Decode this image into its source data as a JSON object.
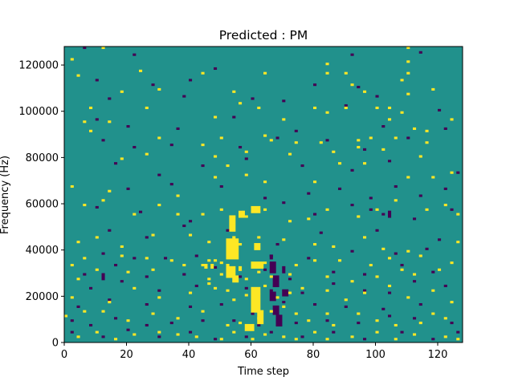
{
  "chart_data": {
    "type": "heatmap",
    "title": "Predicted : PM",
    "xlabel": "Time step",
    "ylabel": "Frequency (Hz)",
    "xlim": [
      0,
      128
    ],
    "ylim": [
      0,
      128000
    ],
    "x_ticks": [
      0,
      20,
      40,
      60,
      80,
      100,
      120
    ],
    "y_ticks": [
      0,
      20000,
      40000,
      60000,
      80000,
      100000,
      120000
    ],
    "grid": false,
    "legend": "none",
    "colormap": "viridis",
    "value_levels": [
      -1,
      0,
      1
    ],
    "n_time_steps": 128,
    "n_freq_bins": 128,
    "background_value": 0,
    "colors": {
      "low": "#440154",
      "mid": "#21918c",
      "high": "#fde725"
    },
    "high_cells": [
      [
        2,
        122
      ],
      [
        12,
        127
      ],
      [
        84,
        120
      ],
      [
        84,
        116
      ],
      [
        110,
        127
      ],
      [
        110,
        121
      ],
      [
        4,
        115
      ],
      [
        24,
        117
      ],
      [
        44,
        116
      ],
      [
        64,
        116
      ],
      [
        90,
        116
      ],
      [
        108,
        113
      ],
      [
        110,
        116
      ],
      [
        18,
        108
      ],
      [
        30,
        109
      ],
      [
        54,
        108
      ],
      [
        92,
        111
      ],
      [
        96,
        108
      ],
      [
        110,
        107
      ],
      [
        118,
        109
      ],
      [
        8,
        101
      ],
      [
        26,
        101
      ],
      [
        56,
        103
      ],
      [
        62,
        101
      ],
      [
        80,
        101
      ],
      [
        84,
        99
      ],
      [
        90,
        101
      ],
      [
        100,
        101
      ],
      [
        104,
        101
      ],
      [
        108,
        99
      ],
      [
        6,
        95
      ],
      [
        14,
        95
      ],
      [
        48,
        97
      ],
      [
        70,
        96
      ],
      [
        104,
        96
      ],
      [
        112,
        92
      ],
      [
        116,
        91
      ],
      [
        124,
        96
      ],
      [
        8,
        91
      ],
      [
        30,
        88
      ],
      [
        44,
        85
      ],
      [
        50,
        88
      ],
      [
        64,
        89
      ],
      [
        66,
        87
      ],
      [
        74,
        86
      ],
      [
        82,
        86
      ],
      [
        94,
        87
      ],
      [
        98,
        88
      ],
      [
        106,
        88
      ],
      [
        116,
        86
      ],
      [
        18,
        79
      ],
      [
        26,
        81
      ],
      [
        48,
        80
      ],
      [
        58,
        82
      ],
      [
        72,
        81
      ],
      [
        86,
        82
      ],
      [
        94,
        84
      ],
      [
        102,
        83
      ],
      [
        114,
        80
      ],
      [
        2,
        67
      ],
      [
        14,
        65
      ],
      [
        36,
        63
      ],
      [
        48,
        71
      ],
      [
        52,
        76
      ],
      [
        58,
        72
      ],
      [
        64,
        69
      ],
      [
        80,
        69
      ],
      [
        88,
        77
      ],
      [
        96,
        77
      ],
      [
        110,
        71
      ],
      [
        118,
        71
      ],
      [
        124,
        73
      ],
      [
        6,
        59
      ],
      [
        12,
        61
      ],
      [
        22,
        55
      ],
      [
        30,
        59
      ],
      [
        36,
        55
      ],
      [
        44,
        55
      ],
      [
        50,
        57
      ],
      [
        58,
        54
      ],
      [
        64,
        57
      ],
      [
        72,
        52
      ],
      [
        78,
        53
      ],
      [
        84,
        57
      ],
      [
        94,
        54
      ],
      [
        100,
        57
      ],
      [
        106,
        61
      ],
      [
        116,
        57
      ],
      [
        122,
        59
      ],
      [
        126,
        55
      ],
      [
        4,
        43
      ],
      [
        10,
        45
      ],
      [
        18,
        41
      ],
      [
        28,
        46
      ],
      [
        40,
        46
      ],
      [
        46,
        43
      ],
      [
        54,
        45
      ],
      [
        56,
        42
      ],
      [
        62,
        45
      ],
      [
        70,
        44
      ],
      [
        80,
        42
      ],
      [
        86,
        41
      ],
      [
        96,
        45
      ],
      [
        102,
        40
      ],
      [
        110,
        39
      ],
      [
        126,
        43
      ],
      [
        2,
        33
      ],
      [
        6,
        36
      ],
      [
        18,
        37
      ],
      [
        26,
        36
      ],
      [
        34,
        35
      ],
      [
        44,
        33
      ],
      [
        46,
        35
      ],
      [
        48,
        35
      ],
      [
        50,
        34
      ],
      [
        52,
        33
      ],
      [
        56,
        32
      ],
      [
        64,
        34
      ],
      [
        74,
        33
      ],
      [
        80,
        35
      ],
      [
        88,
        35
      ],
      [
        98,
        33
      ],
      [
        104,
        36
      ],
      [
        114,
        37
      ],
      [
        124,
        34
      ],
      [
        4,
        27
      ],
      [
        10,
        31
      ],
      [
        20,
        30
      ],
      [
        28,
        31
      ],
      [
        38,
        33
      ],
      [
        46,
        27
      ],
      [
        50,
        29
      ],
      [
        56,
        31
      ],
      [
        58,
        27
      ],
      [
        62,
        30
      ],
      [
        66,
        28
      ],
      [
        72,
        29
      ],
      [
        84,
        28
      ],
      [
        92,
        26
      ],
      [
        100,
        28
      ],
      [
        108,
        31
      ],
      [
        112,
        29
      ],
      [
        120,
        31
      ],
      [
        2,
        19
      ],
      [
        14,
        17
      ],
      [
        22,
        23
      ],
      [
        30,
        19
      ],
      [
        40,
        21
      ],
      [
        46,
        25
      ],
      [
        48,
        23
      ],
      [
        52,
        22
      ],
      [
        54,
        18
      ],
      [
        58,
        20
      ],
      [
        64,
        24
      ],
      [
        68,
        19
      ],
      [
        72,
        21
      ],
      [
        76,
        23
      ],
      [
        84,
        22
      ],
      [
        90,
        18
      ],
      [
        96,
        21
      ],
      [
        104,
        24
      ],
      [
        110,
        19
      ],
      [
        118,
        22
      ],
      [
        124,
        17
      ],
      [
        0,
        11
      ],
      [
        6,
        13
      ],
      [
        12,
        13
      ],
      [
        20,
        9
      ],
      [
        28,
        12
      ],
      [
        36,
        10
      ],
      [
        44,
        13
      ],
      [
        52,
        7
      ],
      [
        56,
        8
      ],
      [
        62,
        10
      ],
      [
        66,
        13
      ],
      [
        70,
        15
      ],
      [
        74,
        12
      ],
      [
        78,
        9
      ],
      [
        84,
        12
      ],
      [
        86,
        7
      ],
      [
        94,
        12
      ],
      [
        100,
        9
      ],
      [
        106,
        7
      ],
      [
        114,
        8
      ],
      [
        118,
        12
      ],
      [
        122,
        10
      ],
      [
        4,
        2
      ],
      [
        10,
        4
      ],
      [
        16,
        1
      ],
      [
        22,
        3
      ],
      [
        30,
        4
      ],
      [
        36,
        3
      ],
      [
        42,
        2
      ],
      [
        50,
        1
      ],
      [
        54,
        4
      ],
      [
        60,
        1
      ],
      [
        64,
        3
      ],
      [
        70,
        2
      ],
      [
        74,
        1
      ],
      [
        80,
        4
      ],
      [
        84,
        1
      ],
      [
        92,
        2
      ],
      [
        100,
        4
      ],
      [
        106,
        1
      ],
      [
        112,
        3
      ],
      [
        122,
        2
      ],
      [
        126,
        1
      ],
      [
        53,
        51,
        2,
        4
      ],
      [
        53,
        48,
        2,
        3
      ],
      [
        52,
        42,
        4,
        3
      ],
      [
        52,
        36,
        4,
        6
      ],
      [
        52,
        28,
        3,
        5
      ],
      [
        54,
        26,
        2,
        3
      ],
      [
        60,
        56,
        3,
        3
      ],
      [
        61,
        40,
        2,
        3
      ],
      [
        60,
        32,
        4,
        3
      ],
      [
        60,
        21,
        3,
        3
      ],
      [
        60,
        13,
        3,
        8
      ],
      [
        62,
        8,
        2,
        6
      ],
      [
        58,
        5,
        3,
        3
      ],
      [
        56,
        54,
        2,
        3
      ],
      [
        45,
        32,
        1,
        2
      ],
      [
        47,
        32,
        1,
        2
      ]
    ],
    "low_cells": [
      [
        6,
        127
      ],
      [
        22,
        124
      ],
      [
        48,
        118
      ],
      [
        92,
        124
      ],
      [
        114,
        125
      ],
      [
        10,
        113
      ],
      [
        28,
        111
      ],
      [
        40,
        113
      ],
      [
        80,
        111
      ],
      [
        94,
        110
      ],
      [
        14,
        105
      ],
      [
        38,
        106
      ],
      [
        60,
        105
      ],
      [
        70,
        104
      ],
      [
        90,
        102
      ],
      [
        100,
        106
      ],
      [
        120,
        100
      ],
      [
        10,
        96
      ],
      [
        20,
        93
      ],
      [
        36,
        92
      ],
      [
        54,
        97
      ],
      [
        74,
        91
      ],
      [
        102,
        93
      ],
      [
        122,
        92
      ],
      [
        12,
        87
      ],
      [
        22,
        84
      ],
      [
        34,
        85
      ],
      [
        56,
        84
      ],
      [
        68,
        88
      ],
      [
        84,
        87
      ],
      [
        96,
        83
      ],
      [
        110,
        88
      ],
      [
        16,
        77
      ],
      [
        30,
        72
      ],
      [
        44,
        76
      ],
      [
        58,
        79
      ],
      [
        76,
        76
      ],
      [
        92,
        74
      ],
      [
        104,
        78
      ],
      [
        20,
        66
      ],
      [
        34,
        68
      ],
      [
        50,
        67
      ],
      [
        64,
        62
      ],
      [
        78,
        64
      ],
      [
        88,
        66
      ],
      [
        98,
        62
      ],
      [
        106,
        67
      ],
      [
        114,
        63
      ],
      [
        122,
        66
      ],
      [
        126,
        73
      ],
      [
        10,
        58
      ],
      [
        24,
        56
      ],
      [
        40,
        52
      ],
      [
        56,
        56
      ],
      [
        70,
        60
      ],
      [
        80,
        55
      ],
      [
        92,
        59
      ],
      [
        98,
        57
      ],
      [
        102,
        55
      ],
      [
        112,
        53
      ],
      [
        124,
        57
      ],
      [
        14,
        48
      ],
      [
        26,
        45
      ],
      [
        38,
        50
      ],
      [
        52,
        48
      ],
      [
        68,
        42
      ],
      [
        82,
        47
      ],
      [
        100,
        48
      ],
      [
        120,
        44
      ],
      [
        12,
        38
      ],
      [
        22,
        36
      ],
      [
        32,
        36
      ],
      [
        42,
        37
      ],
      [
        54,
        40
      ],
      [
        66,
        37
      ],
      [
        78,
        36
      ],
      [
        92,
        39
      ],
      [
        106,
        38
      ],
      [
        116,
        40
      ],
      [
        6,
        29
      ],
      [
        16,
        33
      ],
      [
        26,
        28
      ],
      [
        38,
        29
      ],
      [
        48,
        32
      ],
      [
        56,
        28
      ],
      [
        64,
        31
      ],
      [
        72,
        27
      ],
      [
        86,
        30
      ],
      [
        96,
        29
      ],
      [
        108,
        33
      ],
      [
        118,
        30
      ],
      [
        8,
        23
      ],
      [
        18,
        26
      ],
      [
        30,
        22
      ],
      [
        42,
        24
      ],
      [
        58,
        23
      ],
      [
        66,
        22
      ],
      [
        76,
        21
      ],
      [
        86,
        25
      ],
      [
        96,
        22
      ],
      [
        104,
        21
      ],
      [
        112,
        26
      ],
      [
        122,
        24
      ],
      [
        4,
        15
      ],
      [
        14,
        18
      ],
      [
        26,
        16
      ],
      [
        40,
        15
      ],
      [
        50,
        16
      ],
      [
        60,
        12
      ],
      [
        70,
        17
      ],
      [
        80,
        16
      ],
      [
        90,
        15
      ],
      [
        102,
        14
      ],
      [
        114,
        16
      ],
      [
        2,
        9
      ],
      [
        8,
        7
      ],
      [
        16,
        10
      ],
      [
        26,
        7
      ],
      [
        34,
        8
      ],
      [
        44,
        9
      ],
      [
        54,
        9
      ],
      [
        62,
        7
      ],
      [
        74,
        8
      ],
      [
        84,
        9
      ],
      [
        94,
        8
      ],
      [
        104,
        11
      ],
      [
        112,
        10
      ],
      [
        124,
        8
      ],
      [
        2,
        4
      ],
      [
        12,
        2
      ],
      [
        20,
        5
      ],
      [
        30,
        2
      ],
      [
        40,
        4
      ],
      [
        48,
        1
      ],
      [
        58,
        2
      ],
      [
        66,
        4
      ],
      [
        76,
        2
      ],
      [
        86,
        4
      ],
      [
        96,
        1
      ],
      [
        108,
        4
      ],
      [
        118,
        1
      ],
      [
        126,
        4
      ],
      [
        66,
        36,
        1,
        2
      ],
      [
        66,
        30,
        2,
        5
      ],
      [
        67,
        24,
        2,
        5
      ],
      [
        66,
        18,
        2,
        4
      ],
      [
        67,
        12,
        2,
        4
      ],
      [
        68,
        7,
        2,
        5
      ],
      [
        70,
        20,
        2,
        3
      ],
      [
        70,
        30,
        1,
        3
      ],
      [
        12,
        27,
        1,
        3
      ],
      [
        104,
        54,
        1,
        3
      ]
    ]
  }
}
